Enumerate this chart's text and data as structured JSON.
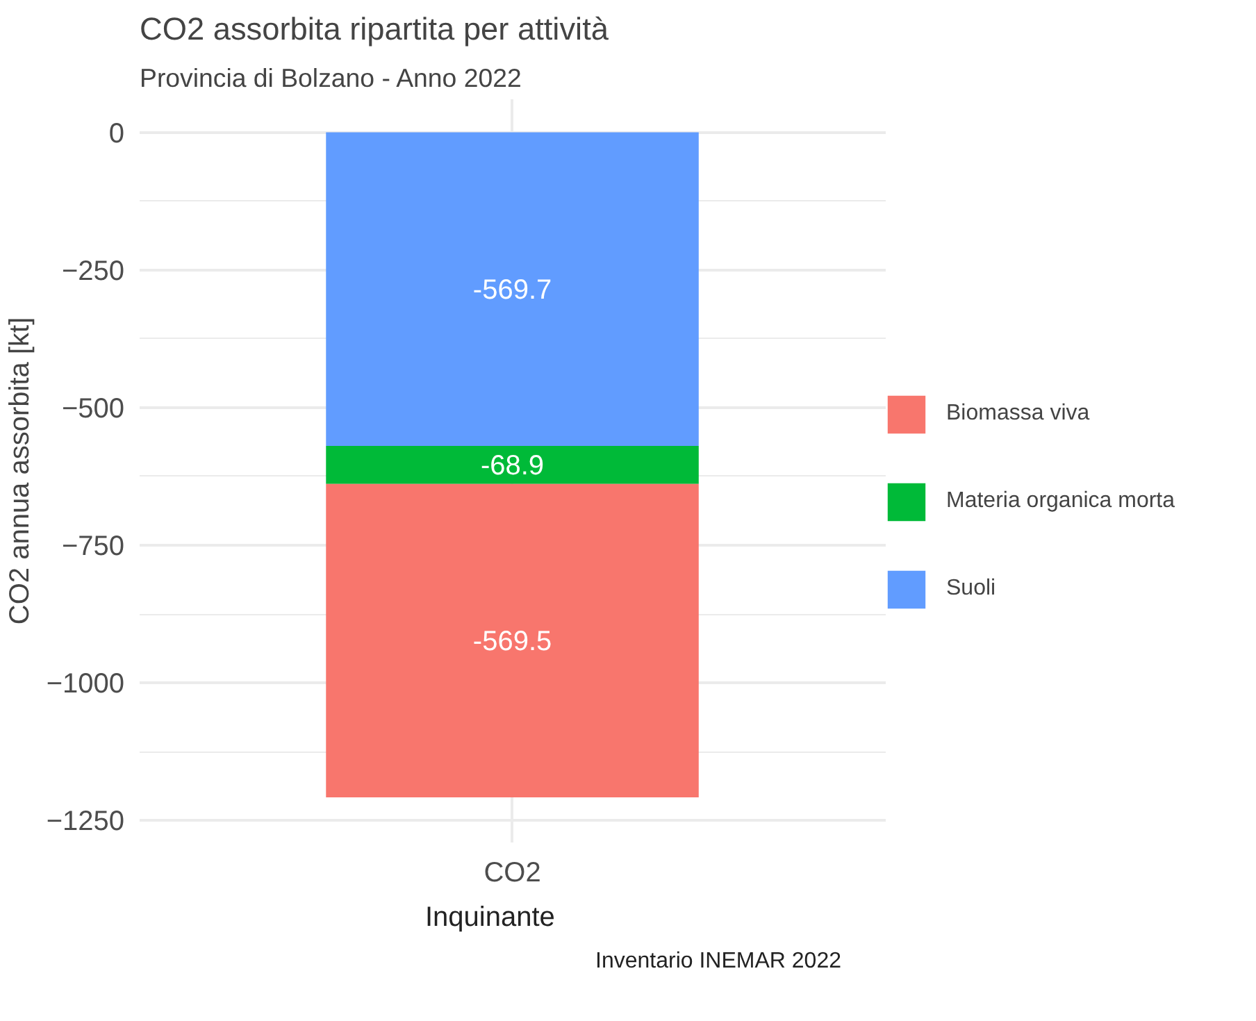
{
  "chart_data": {
    "type": "bar",
    "title": "CO2 assorbita ripartita per attività",
    "subtitle": "Provincia di Bolzano - Anno 2022",
    "xlabel": "Inquinante",
    "ylabel": "CO2 annua assorbita [kt]",
    "annotations": [
      "Inventario INEMAR 2022"
    ],
    "categories": [
      "CO2"
    ],
    "stacked": true,
    "series": [
      {
        "name": "Suoli",
        "color": "#619cff",
        "values": [
          -569.7
        ]
      },
      {
        "name": "Materia organica morta",
        "color": "#00ba38",
        "values": [
          -68.9
        ]
      },
      {
        "name": "Biomassa viva",
        "color": "#f8766d",
        "values": [
          -569.5
        ]
      }
    ],
    "ylim": [
      -1290,
      60
    ],
    "yticks": [
      0,
      -250,
      -500,
      -750,
      -1000,
      -1250
    ],
    "grid": true,
    "legend": "right",
    "data_labels": true
  }
}
